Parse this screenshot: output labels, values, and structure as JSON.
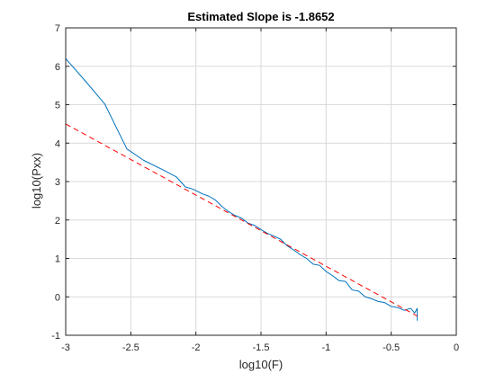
{
  "chart_data": {
    "type": "line",
    "title": "Estimated Slope is -1.8652",
    "xlabel": "log10(F)",
    "ylabel": "log10(Pxx)",
    "xlim": [
      -3,
      0
    ],
    "ylim": [
      -1,
      7
    ],
    "xticks": [
      -3,
      -2.5,
      -2,
      -1.5,
      -1,
      -0.5,
      0
    ],
    "xtick_labels": [
      "-3",
      "-2.5",
      "-2",
      "-1.5",
      "-1",
      "-0.5",
      "0"
    ],
    "yticks": [
      -1,
      0,
      1,
      2,
      3,
      4,
      5,
      6,
      7
    ],
    "ytick_labels": [
      "-1",
      "0",
      "1",
      "2",
      "3",
      "4",
      "5",
      "6",
      "7"
    ],
    "grid": true,
    "box": true,
    "series": [
      {
        "style": "solid",
        "color": "#0072BD",
        "x": [
          -3.0,
          -2.85,
          -2.7,
          -2.53,
          -2.4,
          -2.25,
          -2.15,
          -2.08,
          -2.02,
          -1.95,
          -1.9,
          -1.85,
          -1.8,
          -1.75,
          -1.7,
          -1.65,
          -1.6,
          -1.55,
          -1.5,
          -1.45,
          -1.4,
          -1.35,
          -1.3,
          -1.25,
          -1.2,
          -1.15,
          -1.1,
          -1.05,
          -1.0,
          -0.95,
          -0.9,
          -0.85,
          -0.8,
          -0.75,
          -0.7,
          -0.65,
          -0.6,
          -0.55,
          -0.5,
          -0.45,
          -0.4,
          -0.35,
          -0.32,
          -0.3,
          -0.3
        ],
        "y": [
          6.2,
          5.62,
          5.02,
          3.85,
          3.55,
          3.3,
          3.12,
          2.86,
          2.8,
          2.68,
          2.62,
          2.52,
          2.35,
          2.22,
          2.12,
          2.05,
          1.92,
          1.86,
          1.75,
          1.65,
          1.58,
          1.5,
          1.33,
          1.22,
          1.1,
          1.0,
          0.85,
          0.82,
          0.66,
          0.55,
          0.42,
          0.4,
          0.18,
          0.15,
          0.0,
          -0.05,
          -0.12,
          -0.15,
          -0.25,
          -0.28,
          -0.35,
          -0.3,
          -0.42,
          -0.3,
          -0.62
        ]
      },
      {
        "style": "dashed",
        "color": "#FF0000",
        "x": [
          -3.0,
          -0.3
        ],
        "y": [
          4.5,
          -0.5
        ]
      }
    ]
  }
}
